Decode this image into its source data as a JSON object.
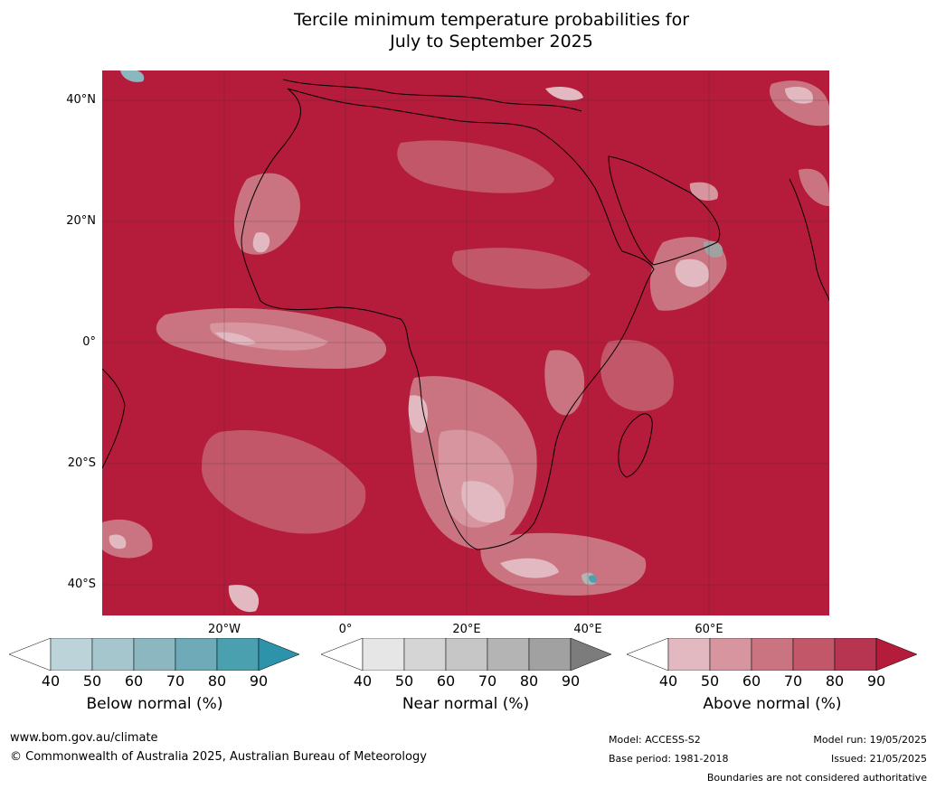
{
  "title_line1": "Tercile minimum temperature probabilities for",
  "title_line2": "July to September 2025",
  "lat_labels": [
    "40°N",
    "20°N",
    "0°",
    "20°S",
    "40°S"
  ],
  "lon_labels": [
    "20°W",
    "0°",
    "20°E",
    "40°E",
    "60°E"
  ],
  "colorbars": [
    {
      "caption": "Below normal (%)",
      "ticks": [
        "40",
        "50",
        "60",
        "70",
        "80",
        "90"
      ],
      "colors": [
        "#ffffff",
        "#bdd3da",
        "#a6c6cd",
        "#8cb6c0",
        "#6eaab7",
        "#4ba0b0",
        "#2d93aa"
      ]
    },
    {
      "caption": "Near normal (%)",
      "ticks": [
        "40",
        "50",
        "60",
        "70",
        "80",
        "90"
      ],
      "colors": [
        "#ffffff",
        "#e6e6e6",
        "#d5d5d5",
        "#c6c6c6",
        "#b4b4b4",
        "#a1a1a1",
        "#7c7c7c"
      ]
    },
    {
      "caption": "Above normal (%)",
      "ticks": [
        "40",
        "50",
        "60",
        "70",
        "80",
        "90"
      ],
      "colors": [
        "#ffffff",
        "#e2b9c0",
        "#d6959f",
        "#cb7481",
        "#c2576a",
        "#b73551",
        "#b51b3a"
      ]
    }
  ],
  "footer": {
    "website": "www.bom.gov.au/climate",
    "copyright": "© Commonwealth of Australia 2025, Australian Bureau of Meteorology",
    "model": "Model: ACCESS-S2",
    "base_period": "Base period: 1981-2018",
    "model_run": "Model run: 19/05/2025",
    "issued": "Issued: 21/05/2025",
    "disclaimer": "Boundaries are not considered authoritative"
  }
}
